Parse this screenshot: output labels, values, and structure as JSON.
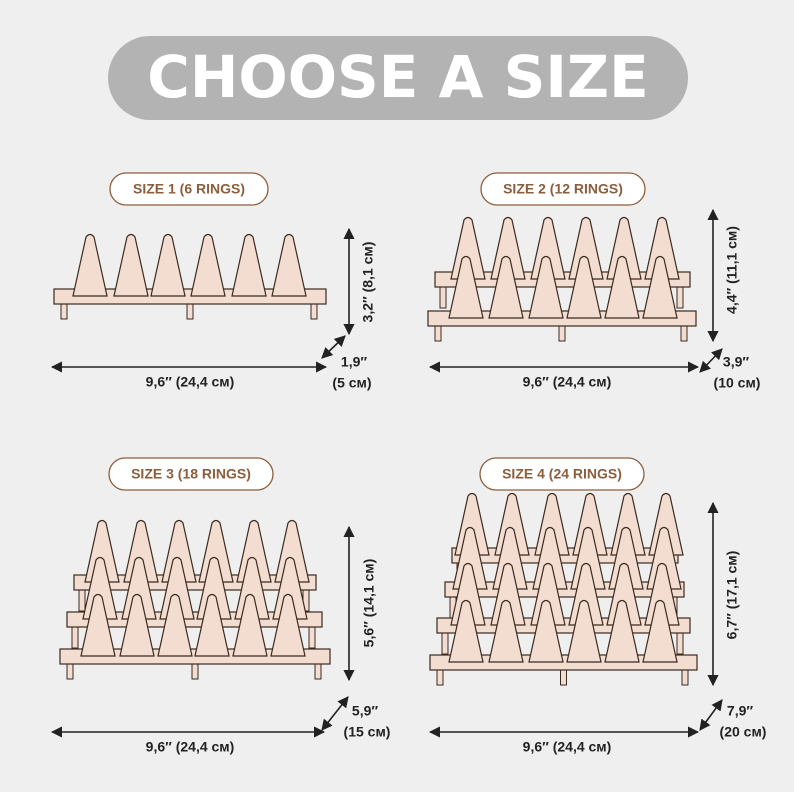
{
  "title": "CHOOSE A SIZE",
  "sizes": [
    {
      "label": "SIZE 1 (6 RINGS)",
      "width": "9,6″ (24,4 см)",
      "height": "3,2″ (8,1 см)",
      "depth": [
        "1,9″",
        "(5 см)"
      ]
    },
    {
      "label": "SIZE 2 (12 RINGS)",
      "width": "9,6″ (24,4 см)",
      "height": "4,4″ (11,1 см)",
      "depth": [
        "3,9″",
        "(10 см)"
      ]
    },
    {
      "label": "SIZE 3 (18 RINGS)",
      "width": "9,6″ (24,4 см)",
      "height": "5,6″ (14,1 см)",
      "depth": [
        "5,9″",
        "(15 см)"
      ]
    },
    {
      "label": "SIZE 4 (24 RINGS)",
      "width": "9,6″ (24,4 см)",
      "height": "6,7″ (17,1 см)",
      "depth": [
        "7,9″",
        "(20 см)"
      ]
    }
  ]
}
